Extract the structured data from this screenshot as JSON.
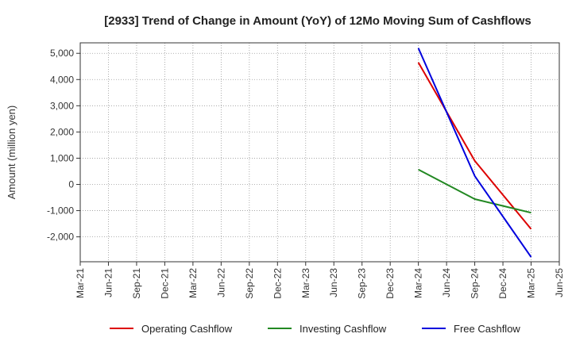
{
  "chart_data": {
    "type": "line",
    "title": "[2933]  Trend of Change in Amount (YoY) of 12Mo Moving Sum of Cashflows",
    "xlabel": "",
    "ylabel": "Amount (million yen)",
    "x": [
      "Mar-21",
      "Jun-21",
      "Sep-21",
      "Dec-21",
      "Mar-22",
      "Jun-22",
      "Sep-22",
      "Dec-22",
      "Mar-23",
      "Jun-23",
      "Sep-23",
      "Dec-23",
      "Mar-24",
      "Jun-24",
      "Sep-24",
      "Dec-24",
      "Mar-25",
      "Jun-25"
    ],
    "yticks": [
      "5,000",
      "4,000",
      "3,000",
      "2,000",
      "1,000",
      "0",
      "-1,000",
      "-2,000"
    ],
    "ytick_values": [
      5000,
      4000,
      3000,
      2000,
      1000,
      0,
      -1000,
      -2000
    ],
    "ylim": [
      -2950,
      5400
    ],
    "grid": true,
    "legend_position": "bottom",
    "series": [
      {
        "name": "Operating Cashflow",
        "color": "#dd0000",
        "values": [
          null,
          null,
          null,
          null,
          null,
          null,
          null,
          null,
          null,
          null,
          null,
          null,
          4650,
          null,
          900,
          null,
          -1700,
          null
        ]
      },
      {
        "name": "Investing Cashflow",
        "color": "#228822",
        "values": [
          null,
          null,
          null,
          null,
          null,
          null,
          null,
          null,
          null,
          null,
          null,
          null,
          570,
          null,
          -560,
          null,
          -1080,
          null
        ]
      },
      {
        "name": "Free Cashflow",
        "color": "#0000dd",
        "values": [
          null,
          null,
          null,
          null,
          null,
          null,
          null,
          null,
          null,
          null,
          null,
          null,
          5200,
          null,
          320,
          null,
          -2770,
          null
        ]
      }
    ]
  }
}
